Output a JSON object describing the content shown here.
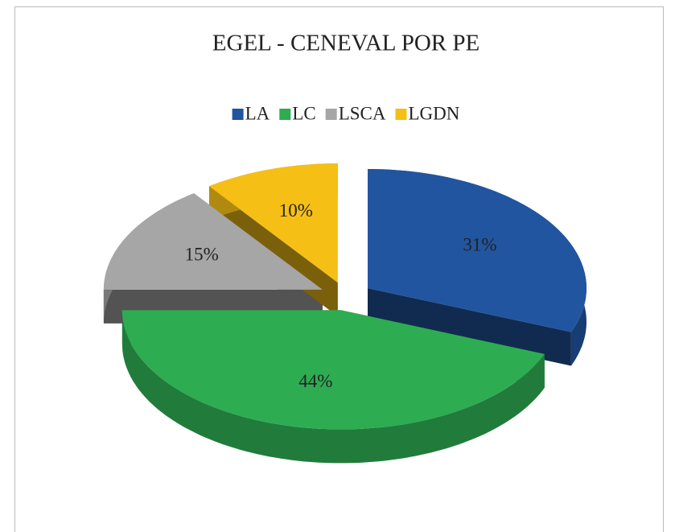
{
  "chart_data": {
    "type": "pie",
    "title": "EGEL - CENEVAL POR PE",
    "categories": [
      "LA",
      "LC",
      "LSCA",
      "LGDN"
    ],
    "values": [
      31,
      44,
      15,
      10
    ],
    "value_labels": [
      "31%",
      "44%",
      "15%",
      "10%"
    ],
    "colors": [
      "#2155a0",
      "#2eac52",
      "#a6a6a6",
      "#f5bf16"
    ],
    "legend": "top"
  }
}
